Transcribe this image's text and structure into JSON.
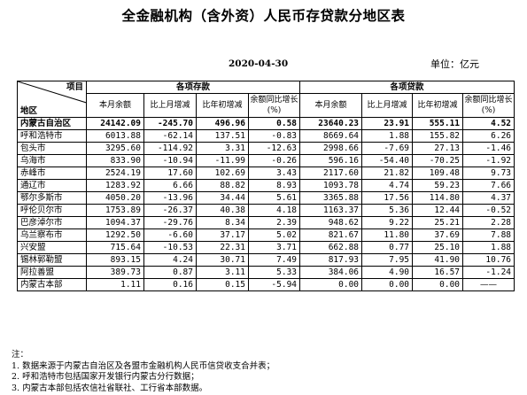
{
  "title": "全金融机构（含外资）人民币存贷款分地区表",
  "date": "2020-04-30",
  "unit": "单位：亿元",
  "header": {
    "item_label": "项目",
    "region_label": "地区",
    "deposit_group": "各项存款",
    "loan_group": "各项贷款",
    "columns": [
      "本月余额",
      "比上月增减",
      "比年初增减",
      "余额同比增长(%)",
      "本月余额",
      "比上月增减",
      "比年初增减",
      "余额同比增长(%)"
    ]
  },
  "rows": [
    {
      "region": "内蒙古自治区",
      "bold": true,
      "values": [
        "24142.09",
        "-245.70",
        "496.96",
        "0.58",
        "23640.23",
        "23.91",
        "555.11",
        "4.52"
      ]
    },
    {
      "region": "呼和浩特市",
      "values": [
        "6013.88",
        "-62.14",
        "137.51",
        "-0.83",
        "8669.64",
        "1.88",
        "155.82",
        "6.26"
      ]
    },
    {
      "region": "包头市",
      "values": [
        "3295.60",
        "-114.92",
        "3.31",
        "-12.63",
        "2998.66",
        "-7.69",
        "27.13",
        "-1.46"
      ]
    },
    {
      "region": "乌海市",
      "values": [
        "833.90",
        "-10.94",
        "-11.99",
        "-0.26",
        "596.16",
        "-54.40",
        "-70.25",
        "-1.92"
      ]
    },
    {
      "region": "赤峰市",
      "values": [
        "2524.19",
        "17.60",
        "102.69",
        "3.43",
        "2117.60",
        "21.82",
        "109.48",
        "9.73"
      ]
    },
    {
      "region": "通辽市",
      "values": [
        "1283.92",
        "6.66",
        "88.82",
        "8.93",
        "1093.78",
        "4.74",
        "59.23",
        "7.66"
      ]
    },
    {
      "region": "鄂尔多斯市",
      "values": [
        "4050.20",
        "-13.96",
        "34.44",
        "5.61",
        "3365.88",
        "17.56",
        "114.80",
        "4.37"
      ]
    },
    {
      "region": "呼伦贝尔市",
      "values": [
        "1753.89",
        "-26.37",
        "40.38",
        "4.18",
        "1163.37",
        "5.36",
        "12.44",
        "-0.52"
      ]
    },
    {
      "region": "巴彦淖尔市",
      "values": [
        "1094.37",
        "-29.76",
        "8.34",
        "2.39",
        "948.62",
        "9.22",
        "25.21",
        "2.28"
      ]
    },
    {
      "region": "乌兰察布市",
      "values": [
        "1292.50",
        "-6.60",
        "37.17",
        "5.02",
        "821.67",
        "11.80",
        "37.69",
        "7.88"
      ]
    },
    {
      "region": "兴安盟",
      "values": [
        "715.64",
        "-10.53",
        "22.31",
        "3.71",
        "662.88",
        "0.77",
        "25.10",
        "1.88"
      ]
    },
    {
      "region": "锡林郭勒盟",
      "values": [
        "893.15",
        "4.24",
        "30.71",
        "7.49",
        "817.93",
        "7.95",
        "41.90",
        "10.76"
      ]
    },
    {
      "region": "阿拉善盟",
      "values": [
        "389.73",
        "0.87",
        "3.11",
        "5.33",
        "384.06",
        "4.90",
        "16.57",
        "-1.24"
      ]
    },
    {
      "region": "内蒙古本部",
      "values": [
        "1.11",
        "0.16",
        "0.15",
        "-5.94",
        "0.00",
        "0.00",
        "0.00",
        "——"
      ]
    }
  ],
  "notes": [
    "注：",
    "1. 数据来源于内蒙古自治区及各盟市金融机构人民币信贷收支合并表；",
    "2. 呼和浩特市包括国家开发银行内蒙古分行数据；",
    "3. 内蒙古本部包括农信社省联社、工行省本部数据。"
  ]
}
